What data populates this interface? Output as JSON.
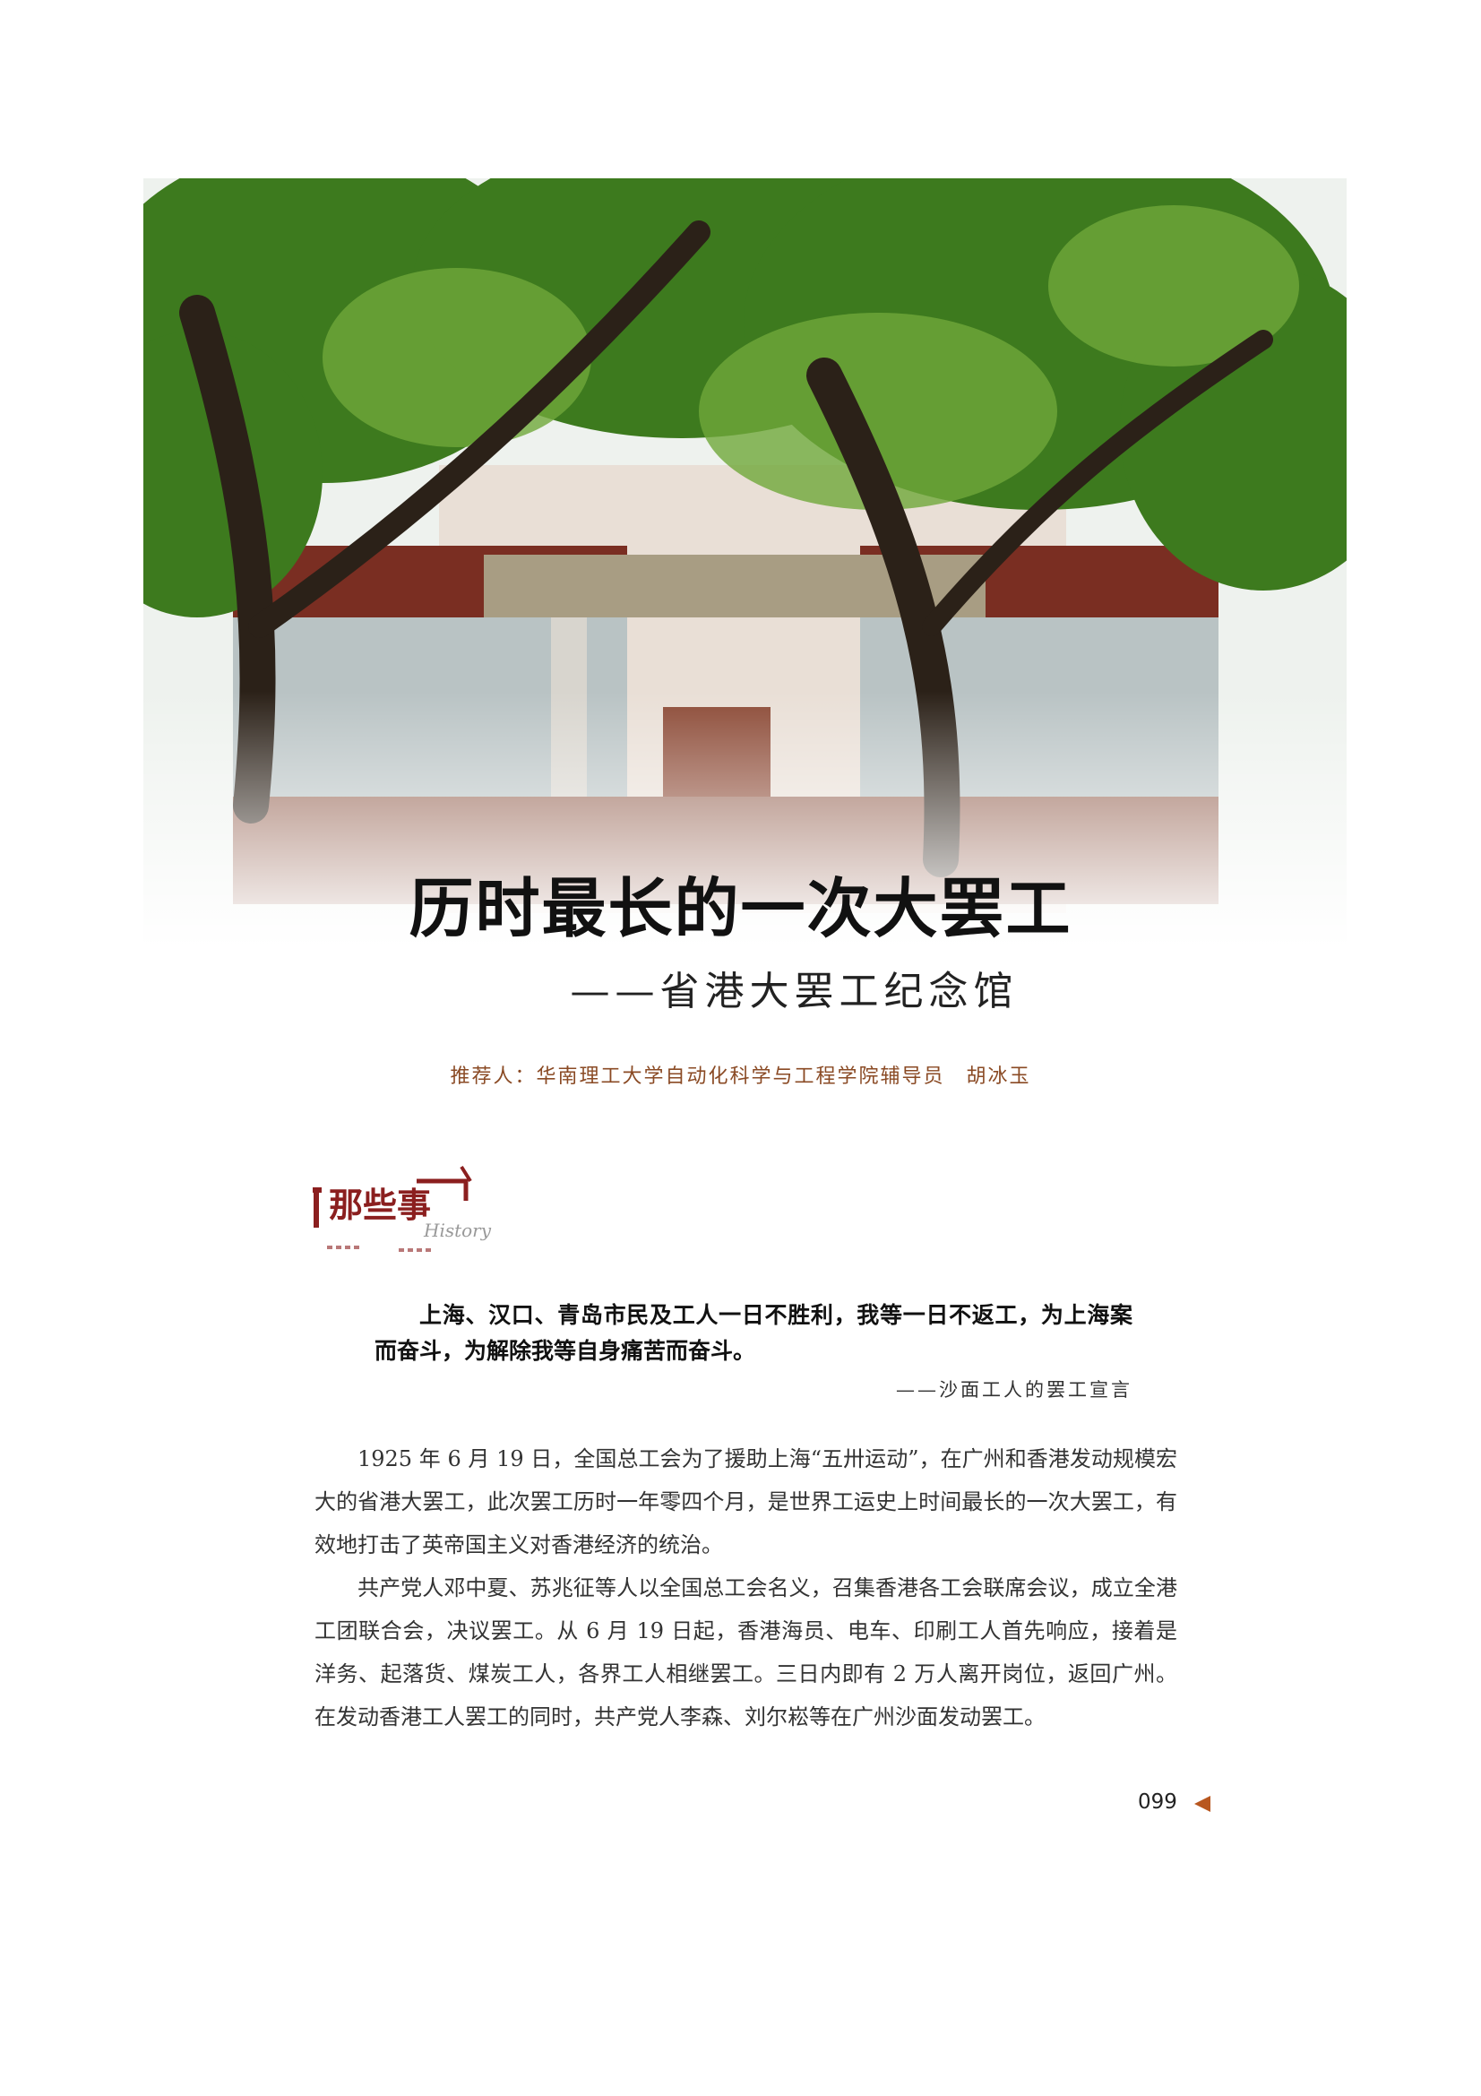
{
  "header": {
    "title": "历时最长的一次大罢工",
    "subtitle": "——省港大罢工纪念馆",
    "recommender": "推荐人：华南理工大学自动化科学与工程学院辅导员　胡冰玉"
  },
  "section": {
    "label": "那些事",
    "label_en": "History"
  },
  "quote": {
    "text": "上海、汉口、青岛市民及工人一日不胜利，我等一日不返工，为上海案而奋斗，为解除我等自身痛苦而奋斗。",
    "source": "——沙面工人的罢工宣言"
  },
  "body": {
    "paragraphs": [
      "1925 年 6 月 19 日，全国总工会为了援助上海“五卅运动”，在广州和香港发动规模宏大的省港大罢工，此次罢工历时一年零四个月，是世界工运史上时间最长的一次大罢工，有效地打击了英帝国主义对香港经济的统治。",
      "共产党人邓中夏、苏兆征等人以全国总工会名义，召集香港各工会联席会议，成立全港工团联合会，决议罢工。从 6 月 19 日起，香港海员、电车、印刷工人首先响应，接着是洋务、起落货、煤炭工人，各界工人相继罢工。三日内即有 2 万人离开岗位，返回广州。在发动香港工人罢工的同时，共产党人李森、刘尔崧等在广州沙面发动罢工。"
    ]
  },
  "footer": {
    "page_number": "099"
  }
}
